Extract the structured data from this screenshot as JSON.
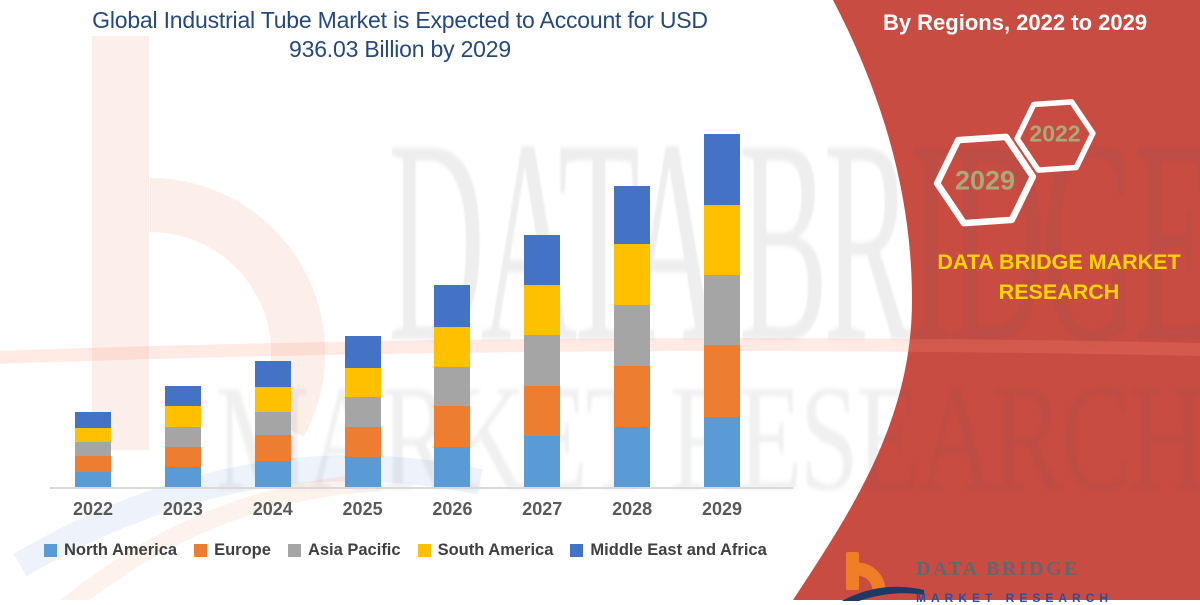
{
  "header": {
    "title_line1": "Global Industrial Tube Market is Expected to Account for USD",
    "title_line2": "936.03 Billion by 2029"
  },
  "ribbon": {
    "heading": "By Regions, 2022 to 2029",
    "hexagon_big_label": "2029",
    "hexagon_small_label": "2022",
    "brand_text_line1": "DATA BRIDGE MARKET",
    "brand_text_line2": "RESEARCH",
    "accent_red": "#C94C42",
    "brand_yellow": "#FFD400",
    "hex_year_color": "#A9A97A"
  },
  "watermark": {
    "line1": "DATA BRIDGE",
    "line2": "MARKET RESEARCH"
  },
  "footer_logo": {
    "name_text": "DATA BRIDGE",
    "subtext": "MARKET RESEARCH"
  },
  "chart_data": {
    "type": "bar",
    "stacked": true,
    "title": "Global Industrial Tube Market is Expected to Account for USD 936.03 Billion by 2029",
    "categories": [
      "2022",
      "2023",
      "2024",
      "2025",
      "2026",
      "2027",
      "2028",
      "2029"
    ],
    "series": [
      {
        "name": "North America",
        "color": "#5B9BD5",
        "values": [
          40.6,
          52.3,
          69.8,
          79.6,
          107.0,
          135.4,
          159.2,
          186.6
        ]
      },
      {
        "name": "Europe",
        "color": "#ED7D31",
        "values": [
          41.7,
          54.7,
          68.2,
          79.6,
          108.8,
          132.7,
          162.7,
          190.3
        ]
      },
      {
        "name": "Asia Pacific",
        "color": "#A5A5A5",
        "values": [
          38.0,
          53.1,
          61.8,
          79.6,
          103.5,
          135.4,
          160.3,
          185.8
        ]
      },
      {
        "name": "South America",
        "color": "#FFC000",
        "values": [
          35.6,
          55.7,
          66.4,
          77.0,
          106.2,
          132.7,
          161.9,
          185.8
        ]
      },
      {
        "name": "Middle East and Africa",
        "color": "#4472C4",
        "values": [
          44.1,
          53.1,
          68.2,
          84.9,
          110.7,
          132.7,
          155.5,
          187.6
        ]
      }
    ],
    "totals_estimated": [
      200,
      269,
      334,
      401,
      536,
      669,
      800,
      936
    ],
    "unit": "USD Billion (estimated; y-axis not labeled in figure)",
    "xlabel": "",
    "ylabel": "",
    "ylim": [
      0,
      960
    ],
    "grid": false,
    "legend_position": "bottom"
  }
}
